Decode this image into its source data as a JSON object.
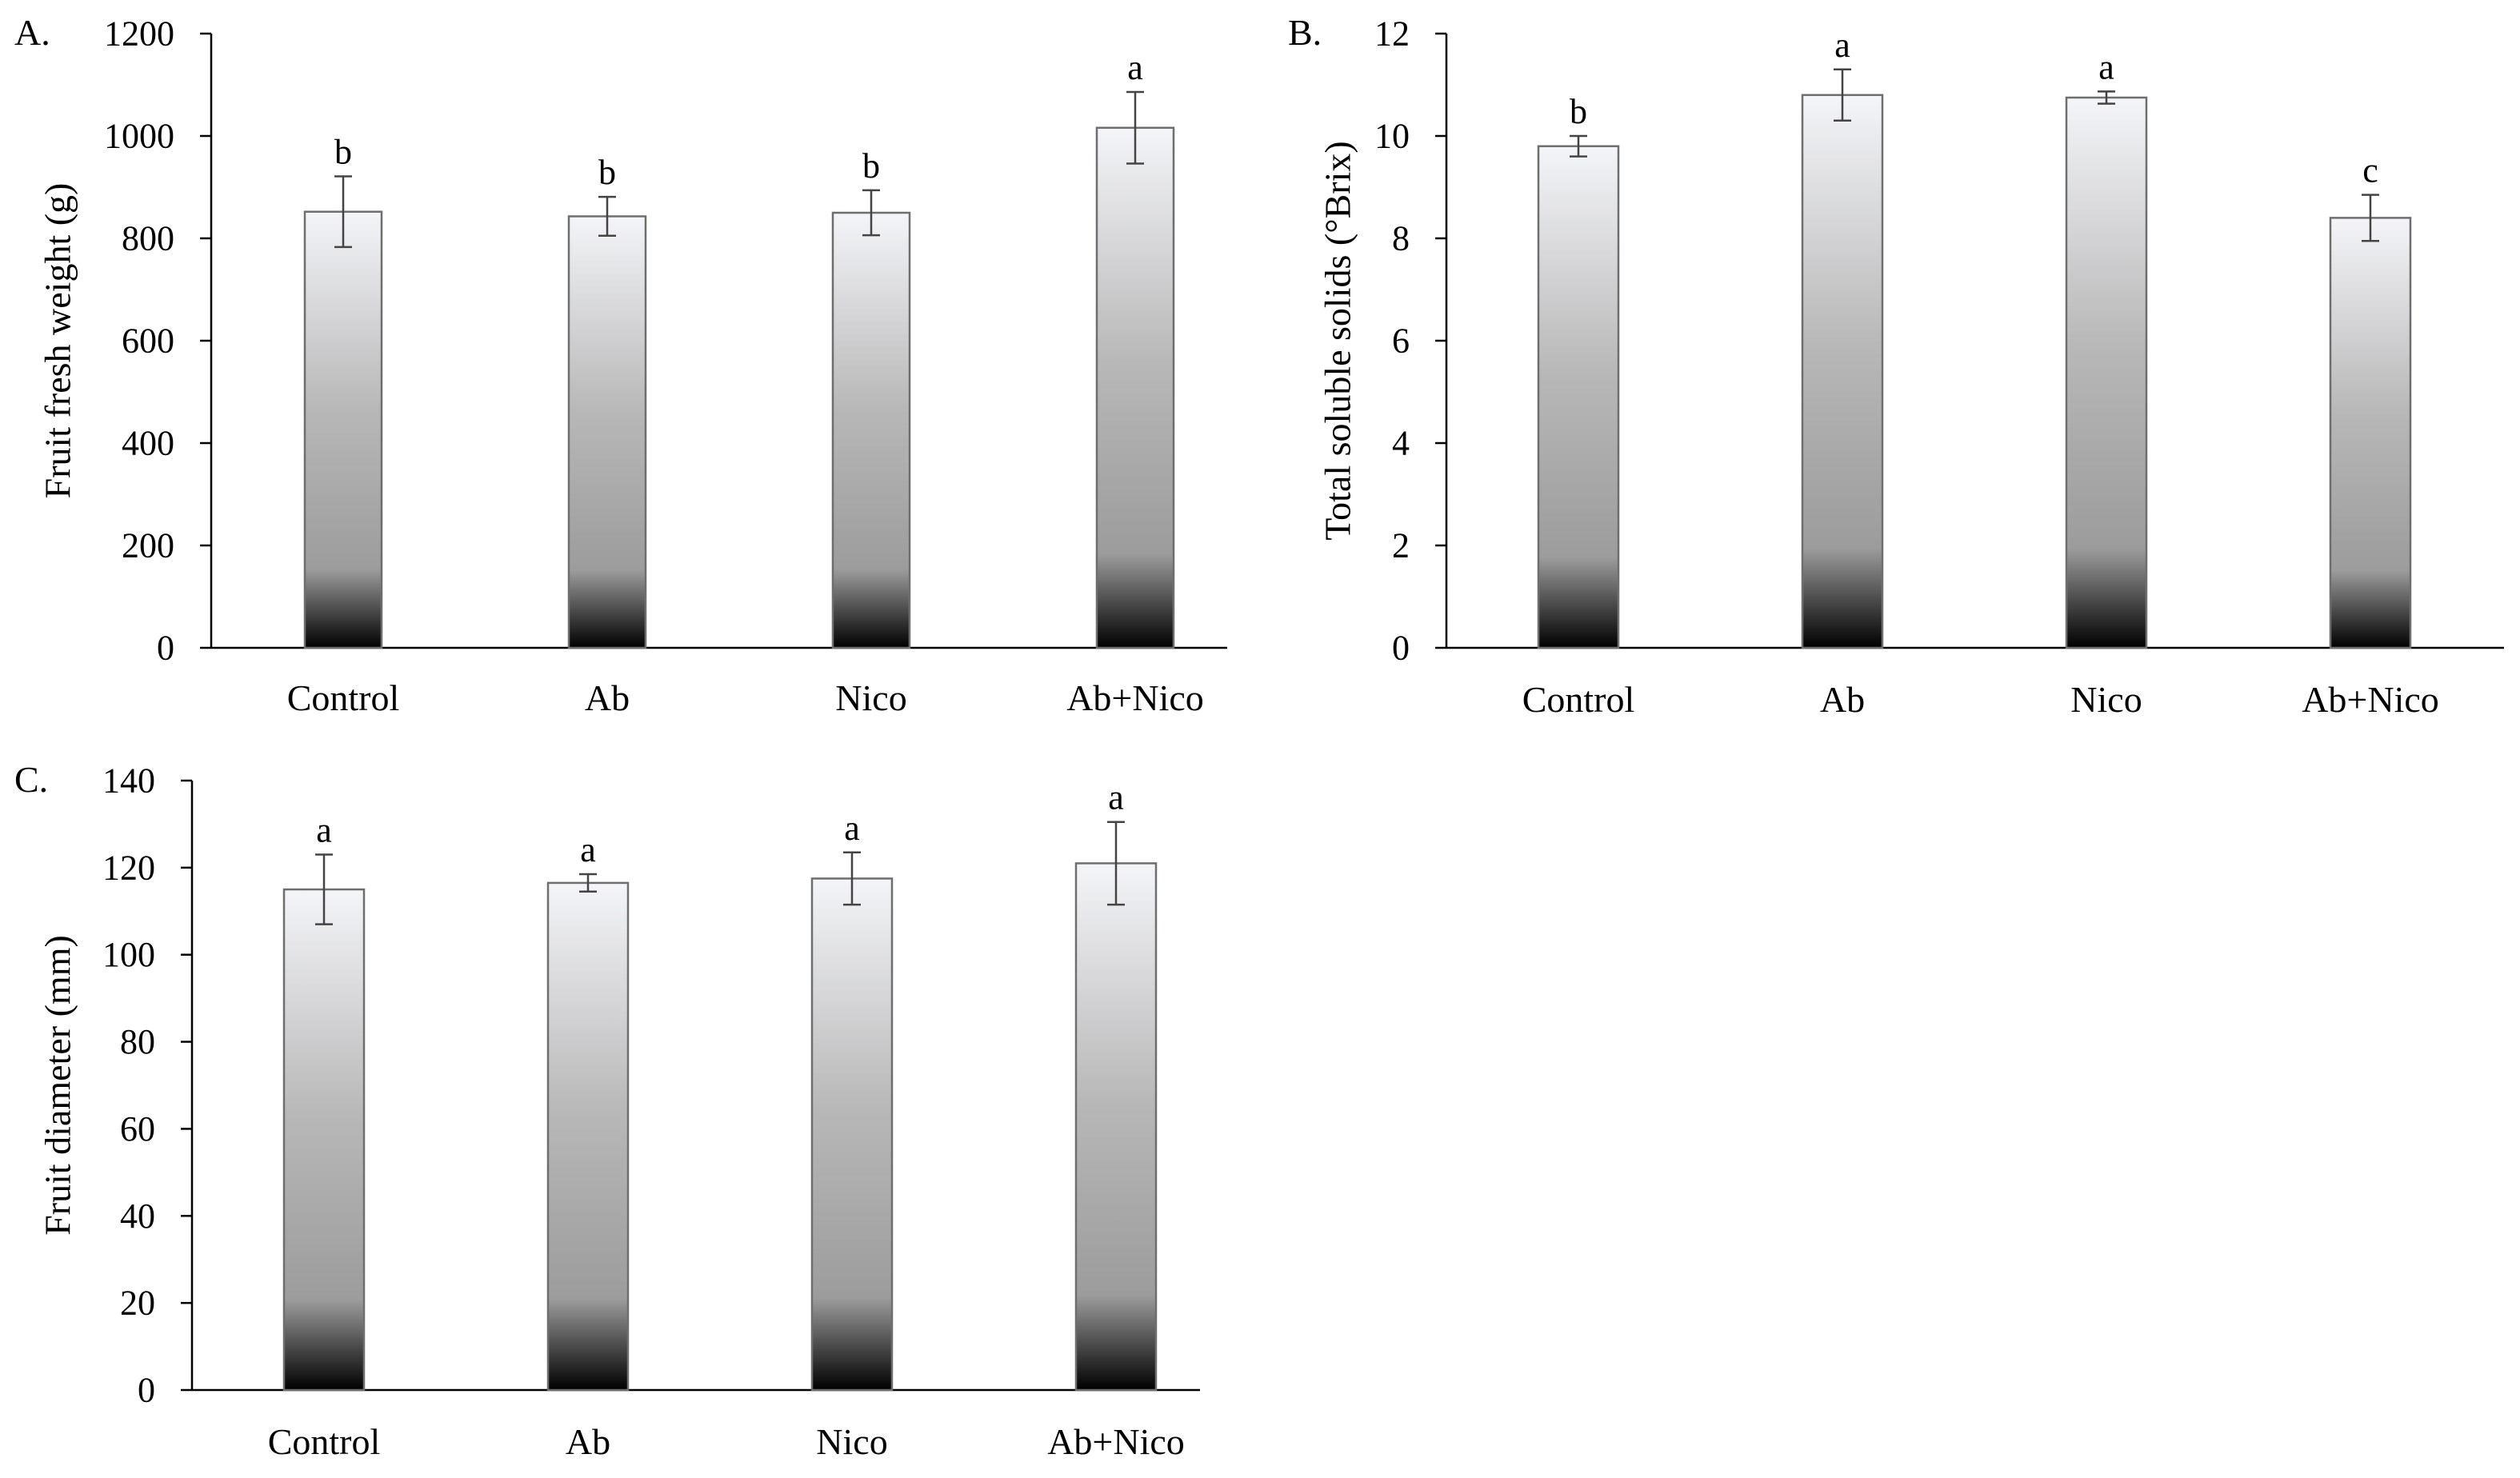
{
  "chart_data": [
    {
      "type": "bar",
      "panel_label": "A.",
      "categories": [
        "Control",
        "Ab",
        "Nico",
        "Ab+Nico"
      ],
      "values": [
        852,
        843,
        850,
        1016
      ],
      "errors": [
        69,
        38,
        44,
        70
      ],
      "letters": [
        "b",
        "b",
        "b",
        "a"
      ],
      "ylabel": "Fruit fresh weight (g)",
      "ylim": [
        0,
        1200
      ],
      "yticks": [
        "0",
        "200",
        "400",
        "600",
        "800",
        "1000",
        "1200"
      ]
    },
    {
      "type": "bar",
      "panel_label": "B.",
      "categories": [
        "Control",
        "Ab",
        "Nico",
        "Ab+Nico"
      ],
      "values": [
        9.8,
        10.8,
        10.75,
        8.4
      ],
      "errors": [
        0.2,
        0.5,
        0.12,
        0.45
      ],
      "letters": [
        "b",
        "a",
        "a",
        "c"
      ],
      "ylabel": "Total soluble solids (°Brix)",
      "ylim": [
        0,
        12
      ],
      "yticks": [
        "0",
        "2",
        "4",
        "6",
        "8",
        "10",
        "12"
      ]
    },
    {
      "type": "bar",
      "panel_label": "C.",
      "categories": [
        "Control",
        "Ab",
        "Nico",
        "Ab+Nico"
      ],
      "values": [
        115,
        116.5,
        117.5,
        121
      ],
      "errors": [
        8,
        2,
        6,
        9.5
      ],
      "letters": [
        "a",
        "a",
        "a",
        "a"
      ],
      "ylabel": "Fruit diameter (mm)",
      "ylim": [
        0,
        140
      ],
      "yticks": [
        "0",
        "20",
        "40",
        "60",
        "80",
        "100",
        "120",
        "140"
      ]
    }
  ],
  "colors": {
    "bar_top": "#f4f5f8",
    "bar_mid": "#9c9c9c",
    "bar_bottom": "#000000",
    "bar_outline": "#6e6e6e",
    "axis": "#000000",
    "error_bar": "#444444"
  }
}
